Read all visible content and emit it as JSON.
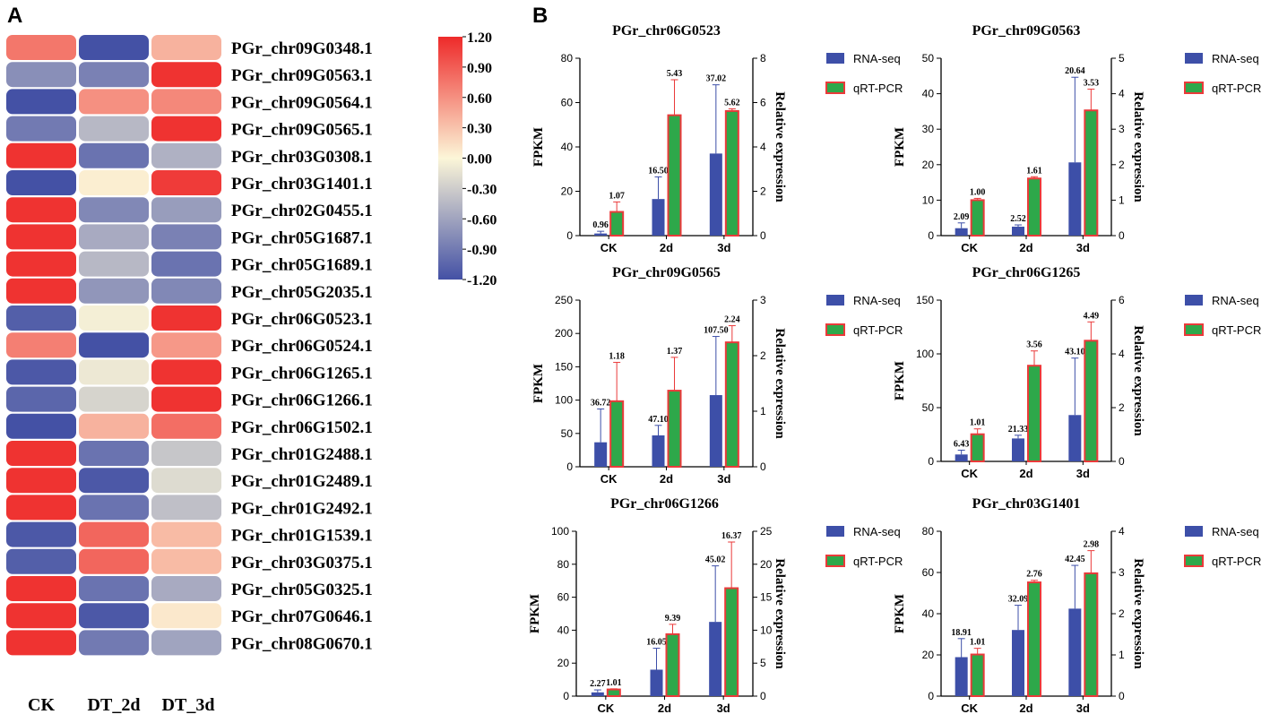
{
  "panel_a_label": "A",
  "panel_b_label": "B",
  "chart_data": [
    {
      "type": "heatmap",
      "columns": [
        "CK",
        "DT_2d",
        "DT_3d"
      ],
      "colorbar": {
        "min": -1.2,
        "max": 1.2,
        "ticks": [
          "1.20",
          "0.90",
          "0.60",
          "0.30",
          "0.00",
          "-0.30",
          "-0.60",
          "-0.90",
          "-1.20"
        ]
      },
      "rows": [
        {
          "gene": "PGr_chr09G0348.1",
          "values": [
            0.75,
            -1.2,
            0.4
          ]
        },
        {
          "gene": "PGr_chr09G0563.1",
          "values": [
            -0.75,
            -0.85,
            1.15
          ]
        },
        {
          "gene": "PGr_chr09G0564.1",
          "values": [
            -1.2,
            0.6,
            0.65
          ]
        },
        {
          "gene": "PGr_chr09G0565.1",
          "values": [
            -0.9,
            -0.45,
            1.15
          ]
        },
        {
          "gene": "PGr_chr03G0308.1",
          "values": [
            1.15,
            -0.95,
            -0.5
          ]
        },
        {
          "gene": "PGr_chr03G1401.1",
          "values": [
            -1.2,
            0.05,
            1.1
          ]
        },
        {
          "gene": "PGr_chr02G0455.1",
          "values": [
            1.15,
            -0.8,
            -0.65
          ]
        },
        {
          "gene": "PGr_chr05G1687.1",
          "values": [
            1.15,
            -0.55,
            -0.85
          ]
        },
        {
          "gene": "PGr_chr05G1689.1",
          "values": [
            1.15,
            -0.45,
            -0.95
          ]
        },
        {
          "gene": "PGr_chr05G2035.1",
          "values": [
            1.15,
            -0.7,
            -0.8
          ]
        },
        {
          "gene": "PGr_chr06G0523.1",
          "values": [
            -1.1,
            -0.05,
            1.15
          ]
        },
        {
          "gene": "PGr_chr06G0524.1",
          "values": [
            0.7,
            -1.2,
            0.55
          ]
        },
        {
          "gene": "PGr_chr06G1265.1",
          "values": [
            -1.15,
            -0.1,
            1.15
          ]
        },
        {
          "gene": "PGr_chr06G1266.1",
          "values": [
            -1.05,
            -0.25,
            1.15
          ]
        },
        {
          "gene": "PGr_chr06G1502.1",
          "values": [
            -1.2,
            0.4,
            0.8
          ]
        },
        {
          "gene": "PGr_chr01G2488.1",
          "values": [
            1.15,
            -0.95,
            -0.35
          ]
        },
        {
          "gene": "PGr_chr01G2489.1",
          "values": [
            1.15,
            -1.15,
            -0.2
          ]
        },
        {
          "gene": "PGr_chr01G2492.1",
          "values": [
            1.15,
            -0.95,
            -0.4
          ]
        },
        {
          "gene": "PGr_chr01G1539.1",
          "values": [
            -1.15,
            0.85,
            0.35
          ]
        },
        {
          "gene": "PGr_chr03G0375.1",
          "values": [
            -1.1,
            0.85,
            0.35
          ]
        },
        {
          "gene": "PGr_chr05G0325.1",
          "values": [
            1.15,
            -0.95,
            -0.55
          ]
        },
        {
          "gene": "PGr_chr07G0646.1",
          "values": [
            1.15,
            -1.15,
            0.08
          ]
        },
        {
          "gene": "PGr_chr08G0670.1",
          "values": [
            1.15,
            -0.9,
            -0.6
          ]
        }
      ]
    },
    {
      "type": "bar",
      "title": "PGr_chr06G0523",
      "categories": [
        "CK",
        "2d",
        "3d"
      ],
      "ylabel": "FPKM",
      "y2label": "Relative expression",
      "ylim": [
        0,
        80
      ],
      "yticks": [
        0,
        20,
        40,
        60,
        80
      ],
      "y2lim": [
        0,
        8
      ],
      "y2ticks": [
        0,
        2,
        4,
        6,
        8
      ],
      "series": [
        {
          "name": "RNA-seq",
          "axis": "left",
          "values": [
            0.96,
            16.5,
            37.02
          ],
          "errors": [
            1.0,
            10.0,
            31.0
          ],
          "labels": [
            "0.96",
            "16.50",
            "37.02"
          ]
        },
        {
          "name": "qRT-PCR",
          "axis": "right",
          "values": [
            1.07,
            5.43,
            5.62
          ],
          "errors": [
            0.45,
            1.6,
            0.1
          ],
          "labels": [
            "1.07",
            "5.43",
            "5.62"
          ]
        }
      ]
    },
    {
      "type": "bar",
      "title": "PGr_chr09G0563",
      "categories": [
        "CK",
        "2d",
        "3d"
      ],
      "ylabel": "FPKM",
      "y2label": "Relative expression",
      "ylim": [
        0,
        50
      ],
      "yticks": [
        0,
        10,
        20,
        30,
        40,
        50
      ],
      "y2lim": [
        0,
        5
      ],
      "y2ticks": [
        0,
        1,
        2,
        3,
        4,
        5
      ],
      "series": [
        {
          "name": "RNA-seq",
          "axis": "left",
          "values": [
            2.09,
            2.52,
            20.64
          ],
          "errors": [
            1.5,
            0.5,
            24.0
          ],
          "labels": [
            "2.09",
            "2.52",
            "20.64"
          ]
        },
        {
          "name": "qRT-PCR",
          "axis": "right",
          "values": [
            1.0,
            1.61,
            3.53
          ],
          "errors": [
            0.05,
            0.05,
            0.6
          ],
          "labels": [
            "1.00",
            "1.61",
            "3.53"
          ]
        }
      ]
    },
    {
      "type": "bar",
      "title": "PGr_chr09G0565",
      "categories": [
        "CK",
        "2d",
        "3d"
      ],
      "ylabel": "FPKM",
      "y2label": "Relative expression",
      "ylim": [
        0,
        250
      ],
      "yticks": [
        0,
        50,
        100,
        150,
        200,
        250
      ],
      "y2lim": [
        0,
        3
      ],
      "y2ticks": [
        0,
        1,
        2,
        3
      ],
      "series": [
        {
          "name": "RNA-seq",
          "axis": "left",
          "values": [
            36.72,
            47.1,
            107.5
          ],
          "errors": [
            50.0,
            15.0,
            88.0
          ],
          "labels": [
            "36.72",
            "47.10",
            "107.50"
          ]
        },
        {
          "name": "qRT-PCR",
          "axis": "right",
          "values": [
            1.18,
            1.37,
            2.24
          ],
          "errors": [
            0.7,
            0.6,
            0.3
          ],
          "labels": [
            "1.18",
            "1.37",
            "2.24"
          ]
        }
      ]
    },
    {
      "type": "bar",
      "title": "PGr_chr06G1265",
      "categories": [
        "CK",
        "2d",
        "3d"
      ],
      "ylabel": "FPKM",
      "y2label": "Relative expression",
      "ylim": [
        0,
        150
      ],
      "yticks": [
        0,
        50,
        100,
        150
      ],
      "y2lim": [
        0,
        6
      ],
      "y2ticks": [
        0,
        2,
        4,
        6
      ],
      "series": [
        {
          "name": "RNA-seq",
          "axis": "left",
          "values": [
            6.43,
            21.33,
            43.1
          ],
          "errors": [
            4.0,
            3.0,
            53.0
          ],
          "labels": [
            "6.43",
            "21.33",
            "43.10"
          ]
        },
        {
          "name": "qRT-PCR",
          "axis": "right",
          "values": [
            1.01,
            3.56,
            4.49
          ],
          "errors": [
            0.2,
            0.55,
            0.7
          ],
          "labels": [
            "1.01",
            "3.56",
            "4.49"
          ]
        }
      ]
    },
    {
      "type": "bar",
      "title": "PGr_chr06G1266",
      "categories": [
        "CK",
        "2d",
        "3d"
      ],
      "ylabel": "FPKM",
      "y2label": "Relative expression",
      "ylim": [
        0,
        100
      ],
      "yticks": [
        0,
        20,
        40,
        60,
        80,
        100
      ],
      "y2lim": [
        0,
        25
      ],
      "y2ticks": [
        0,
        5,
        10,
        15,
        20,
        25
      ],
      "series": [
        {
          "name": "RNA-seq",
          "axis": "left",
          "values": [
            2.27,
            16.05,
            45.02
          ],
          "errors": [
            1.5,
            13.0,
            34.0
          ],
          "labels": [
            "2.27",
            "16.05",
            "45.02"
          ]
        },
        {
          "name": "qRT-PCR",
          "axis": "right",
          "values": [
            1.01,
            9.39,
            16.37
          ],
          "errors": [
            0.1,
            1.5,
            7.0
          ],
          "labels": [
            "1.01",
            "9.39",
            "16.37"
          ]
        }
      ]
    },
    {
      "type": "bar",
      "title": "PGr_chr03G1401",
      "categories": [
        "CK",
        "2d",
        "3d"
      ],
      "ylabel": "FPKM",
      "y2label": "Relative expression",
      "ylim": [
        0,
        80
      ],
      "yticks": [
        0,
        20,
        40,
        60,
        80
      ],
      "y2lim": [
        0,
        4
      ],
      "y2ticks": [
        0,
        1,
        2,
        3,
        4
      ],
      "series": [
        {
          "name": "RNA-seq",
          "axis": "left",
          "values": [
            18.91,
            32.09,
            42.45
          ],
          "errors": [
            9.0,
            12.0,
            21.0
          ],
          "labels": [
            "18.91",
            "32.09",
            "42.45"
          ]
        },
        {
          "name": "qRT-PCR",
          "axis": "right",
          "values": [
            1.01,
            2.76,
            2.98
          ],
          "errors": [
            0.15,
            0.05,
            0.55
          ],
          "labels": [
            "1.01",
            "2.76",
            "2.98"
          ]
        }
      ]
    }
  ],
  "colors": {
    "rna_bar": "#3d4fa8",
    "qrt_fill": "#2ea84a",
    "qrt_edge": "#ea3a3a",
    "heat_low": "#4451a5",
    "heat_mid": "#fcf6d8",
    "heat_high": "#ee2a2a"
  }
}
